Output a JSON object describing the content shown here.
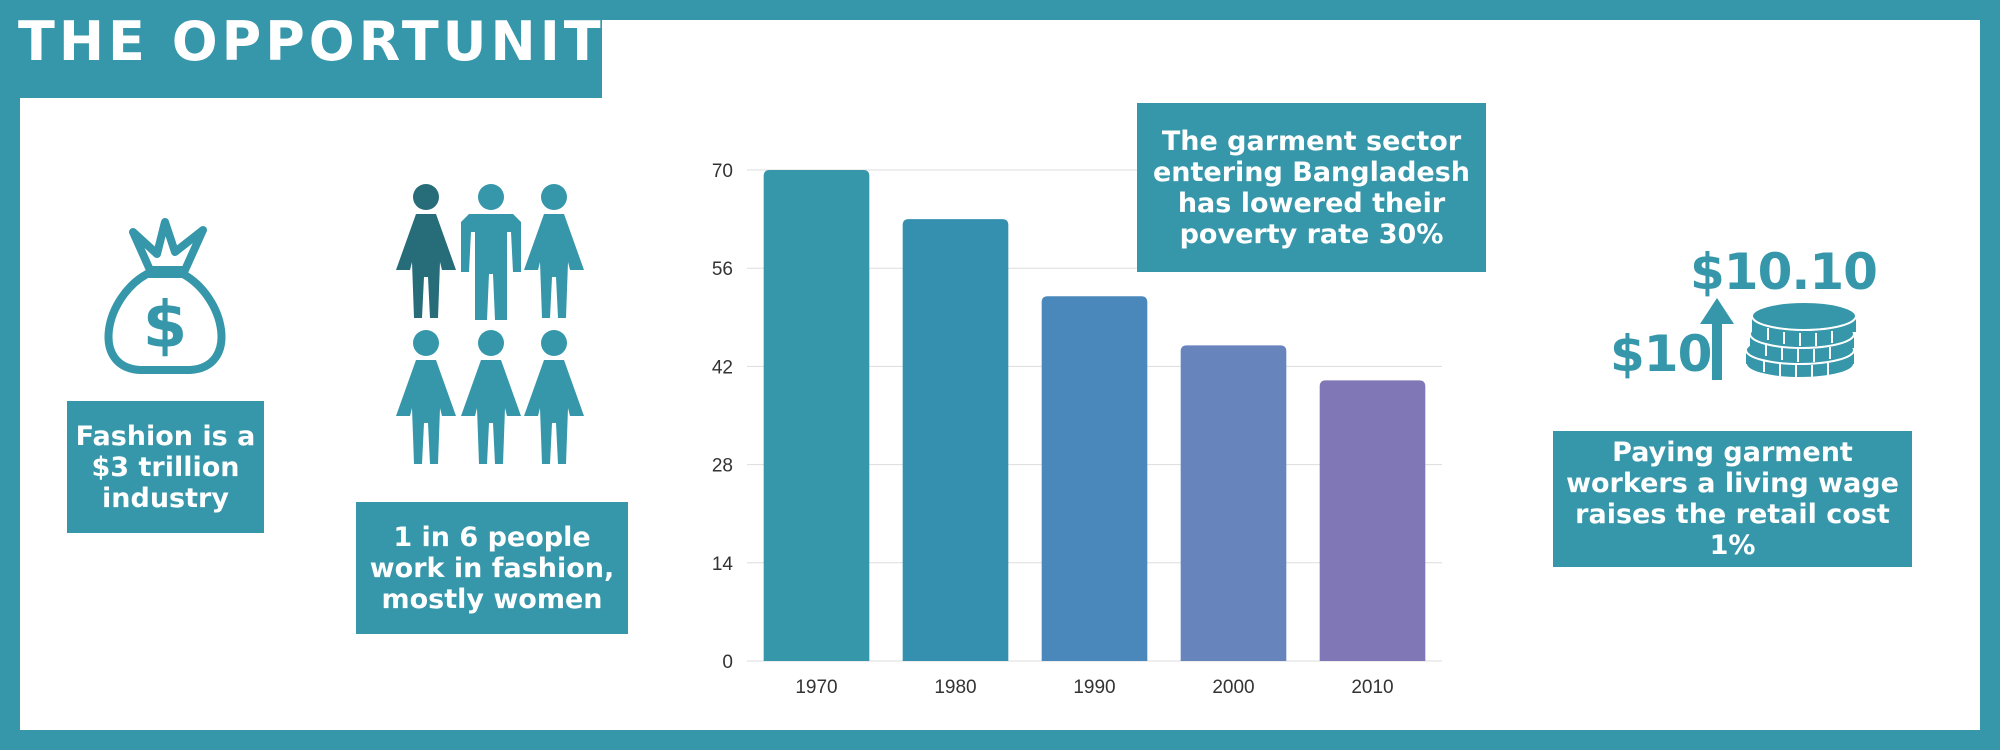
{
  "title": "THE OPPORTUNITY",
  "colors": {
    "teal": "#3597a9",
    "dark_teal": "#266c79"
  },
  "cards": {
    "fashion": [
      "Fashion is a",
      "$3 trillion",
      "industry"
    ],
    "people": [
      "1 in 6 people",
      "work in fashion,",
      "mostly women"
    ],
    "poverty": [
      "The garment sector",
      "entering Bangladesh",
      "has lowered their",
      "poverty rate 30%"
    ],
    "wage": [
      "Paying garment",
      "workers a living wage",
      "raises the retail cost 1%"
    ]
  },
  "wage_graphic": {
    "old_wage": "$10",
    "new_wage": "$10.10"
  },
  "icons": [
    "money-bag-icon",
    "people-group-icon",
    "coin-stack-icon",
    "up-arrow-icon"
  ],
  "chart_data": {
    "type": "bar",
    "categories": [
      "1970",
      "1980",
      "1990",
      "2000",
      "2010"
    ],
    "values": [
      70,
      63,
      52,
      45,
      40
    ],
    "bar_colors": [
      "#3597a9",
      "#3590b0",
      "#4a88bb",
      "#6784bc",
      "#8078b6"
    ],
    "yticks": [
      "0",
      "14",
      "28",
      "42",
      "56",
      "70"
    ],
    "ylim": [
      0,
      70
    ],
    "grid": true
  }
}
